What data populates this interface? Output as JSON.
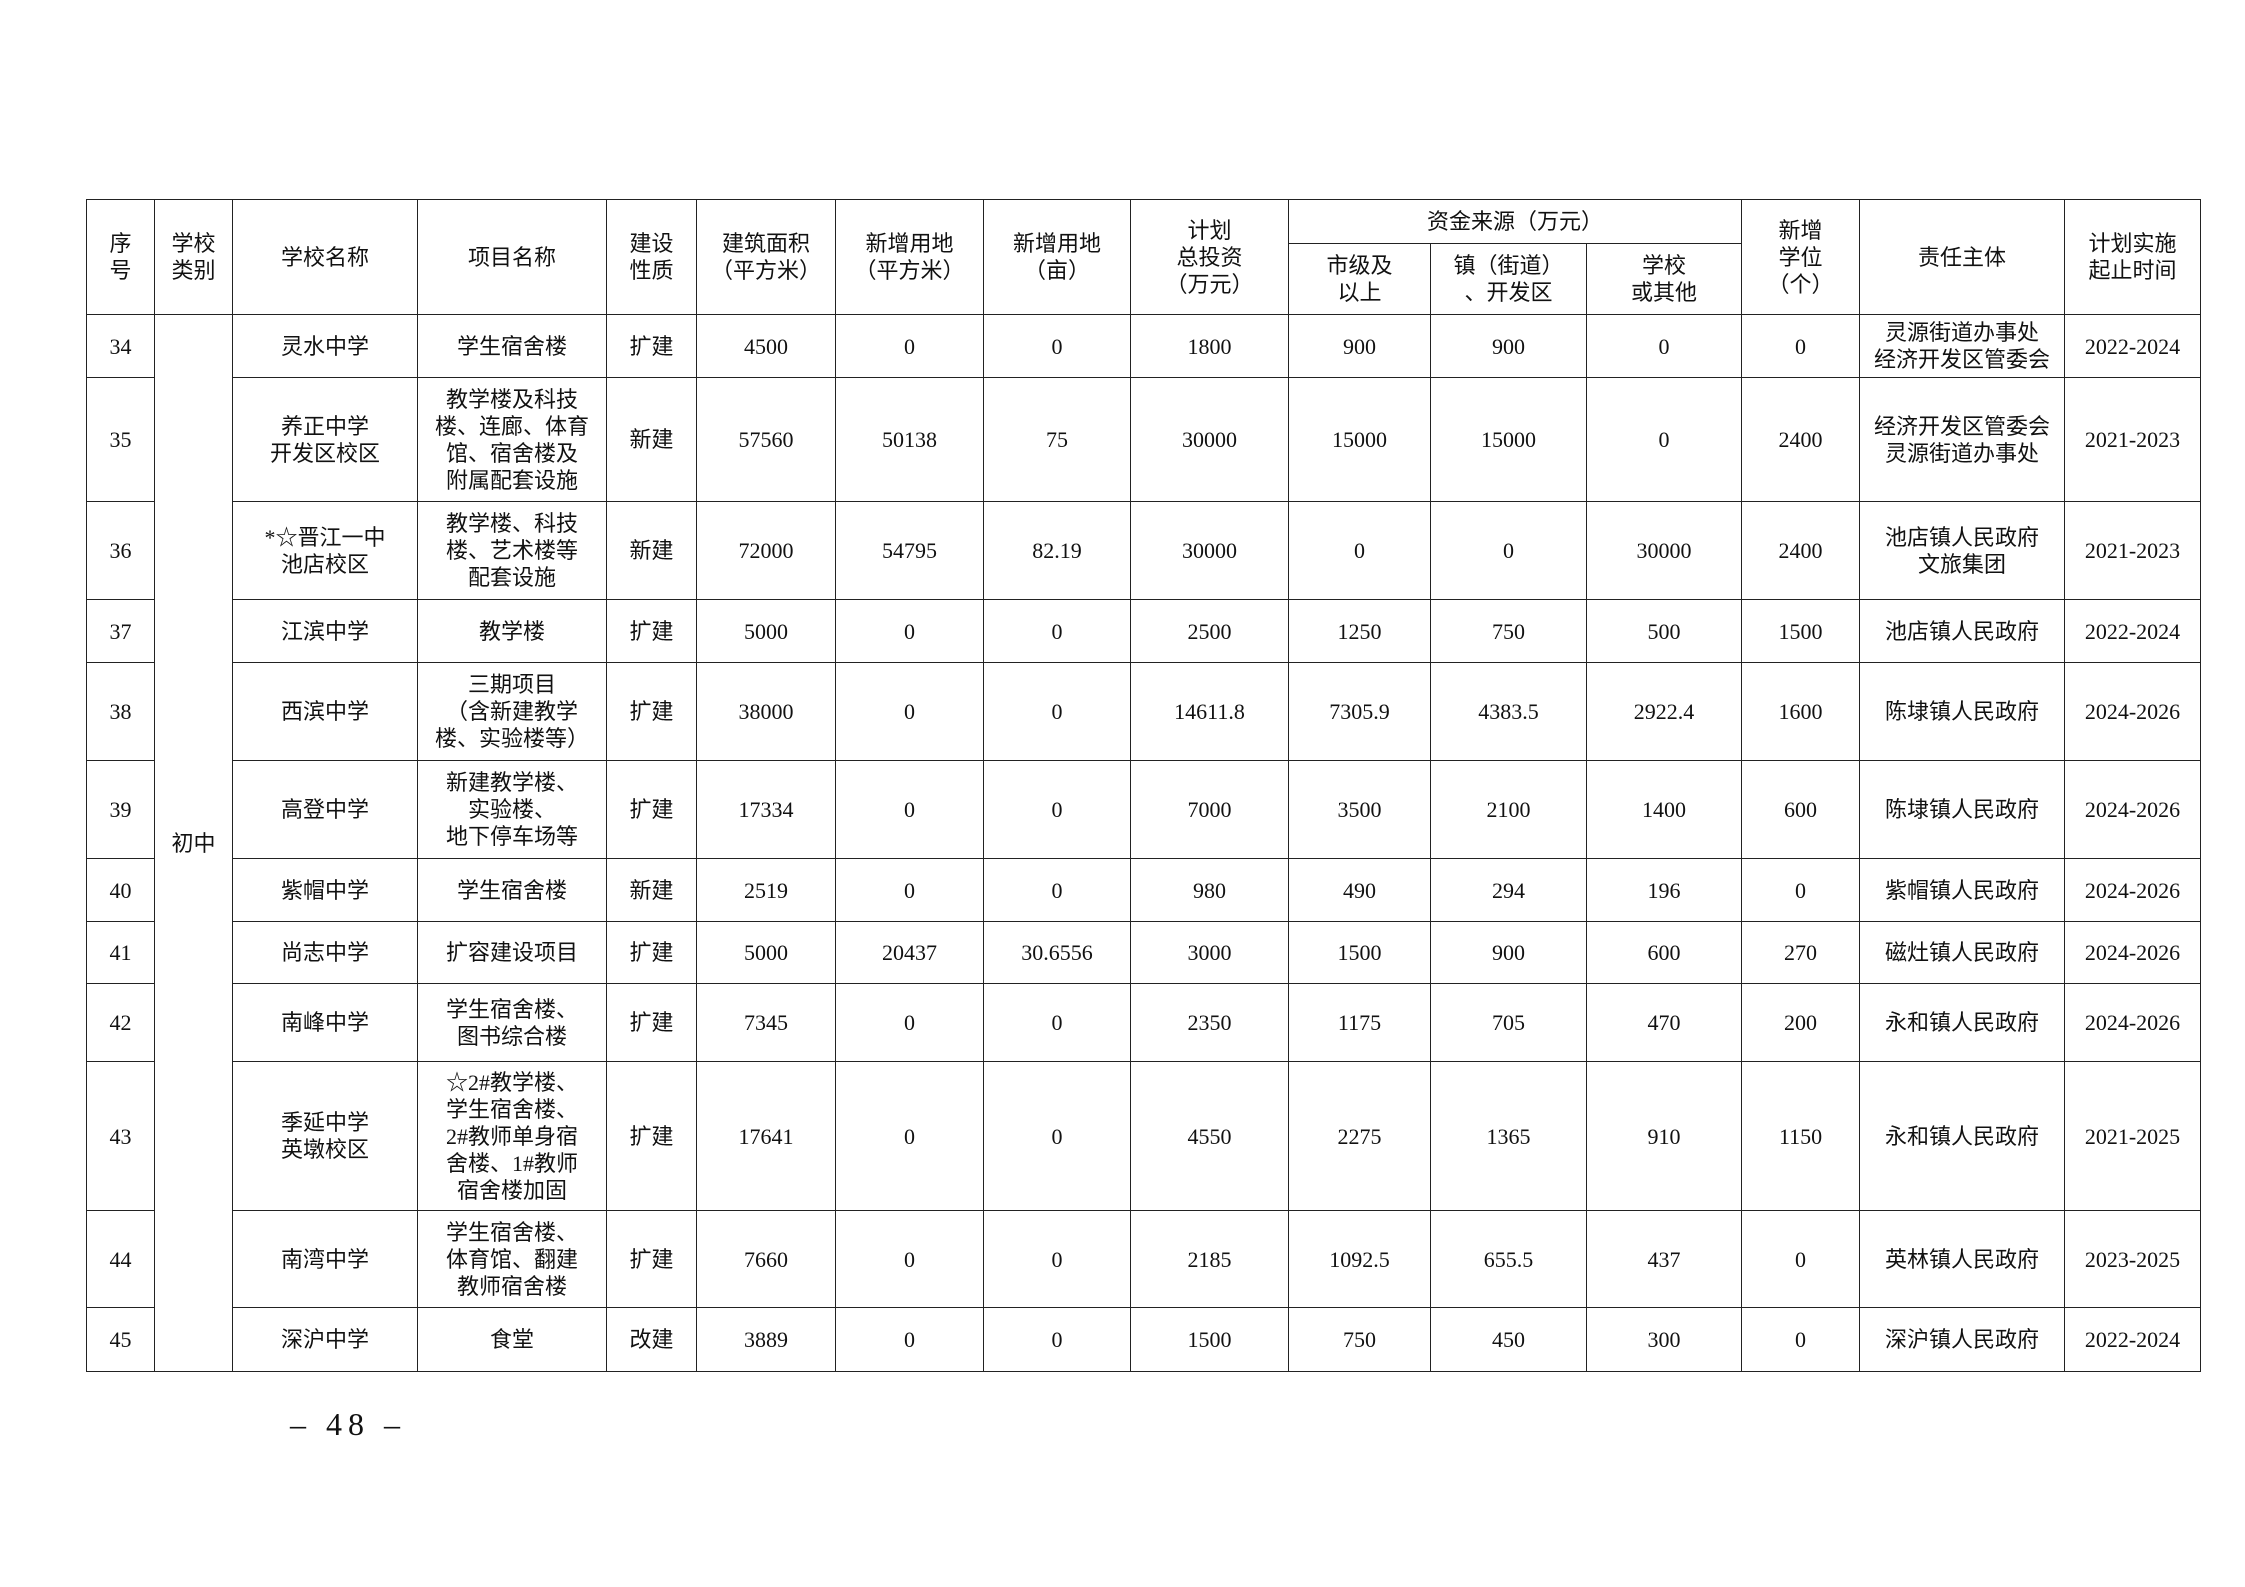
{
  "headers": {
    "no": "序\n号",
    "category": "学校\n类别",
    "school": "学校名称",
    "project": "项目名称",
    "nature": "建设\n性质",
    "area": "建筑面积\n（平方米）",
    "land_sqm": "新增用地\n（平方米）",
    "land_mu": "新增用地\n（亩）",
    "invest": "计划\n总投资\n（万元）",
    "funding": "资金来源（万元）",
    "fund_city": "市级及\n以上",
    "fund_town": "镇（街道）\n、开发区",
    "fund_school": "学校\n或其他",
    "seats": "新增\n学位\n（个）",
    "owner": "责任主体",
    "period": "计划实施\n起止时间"
  },
  "category": "初中",
  "rows": [
    {
      "no": "34",
      "school": "灵水中学",
      "project": "学生宿舍楼",
      "nature": "扩建",
      "area": "4500",
      "land_sqm": "0",
      "land_mu": "0",
      "invest": "1800",
      "city": "900",
      "town": "900",
      "school_fund": "0",
      "seats": "0",
      "owner": "灵源街道办事处\n经济开发区管委会",
      "period": "2022-2024"
    },
    {
      "no": "35",
      "school": "养正中学\n开发区校区",
      "project": "教学楼及科技\n楼、连廊、体育\n馆、宿舍楼及\n附属配套设施",
      "nature": "新建",
      "area": "57560",
      "land_sqm": "50138",
      "land_mu": "75",
      "invest": "30000",
      "city": "15000",
      "town": "15000",
      "school_fund": "0",
      "seats": "2400",
      "owner": "经济开发区管委会\n灵源街道办事处",
      "period": "2021-2023"
    },
    {
      "no": "36",
      "school": "*☆晋江一中\n池店校区",
      "project": "教学楼、科技\n楼、艺术楼等\n配套设施",
      "nature": "新建",
      "area": "72000",
      "land_sqm": "54795",
      "land_mu": "82.19",
      "invest": "30000",
      "city": "0",
      "town": "0",
      "school_fund": "30000",
      "seats": "2400",
      "owner": "池店镇人民政府\n文旅集团",
      "period": "2021-2023"
    },
    {
      "no": "37",
      "school": "江滨中学",
      "project": "教学楼",
      "nature": "扩建",
      "area": "5000",
      "land_sqm": "0",
      "land_mu": "0",
      "invest": "2500",
      "city": "1250",
      "town": "750",
      "school_fund": "500",
      "seats": "1500",
      "owner": "池店镇人民政府",
      "period": "2022-2024"
    },
    {
      "no": "38",
      "school": "西滨中学",
      "project": "三期项目\n（含新建教学\n楼、实验楼等）",
      "nature": "扩建",
      "area": "38000",
      "land_sqm": "0",
      "land_mu": "0",
      "invest": "14611.8",
      "city": "7305.9",
      "town": "4383.5",
      "school_fund": "2922.4",
      "seats": "1600",
      "owner": "陈埭镇人民政府",
      "period": "2024-2026"
    },
    {
      "no": "39",
      "school": "高登中学",
      "project": "新建教学楼、\n实验楼、\n地下停车场等",
      "nature": "扩建",
      "area": "17334",
      "land_sqm": "0",
      "land_mu": "0",
      "invest": "7000",
      "city": "3500",
      "town": "2100",
      "school_fund": "1400",
      "seats": "600",
      "owner": "陈埭镇人民政府",
      "period": "2024-2026"
    },
    {
      "no": "40",
      "school": "紫帽中学",
      "project": "学生宿舍楼",
      "nature": "新建",
      "area": "2519",
      "land_sqm": "0",
      "land_mu": "0",
      "invest": "980",
      "city": "490",
      "town": "294",
      "school_fund": "196",
      "seats": "0",
      "owner": "紫帽镇人民政府",
      "period": "2024-2026"
    },
    {
      "no": "41",
      "school": "尚志中学",
      "project": "扩容建设项目",
      "nature": "扩建",
      "area": "5000",
      "land_sqm": "20437",
      "land_mu": "30.6556",
      "invest": "3000",
      "city": "1500",
      "town": "900",
      "school_fund": "600",
      "seats": "270",
      "owner": "磁灶镇人民政府",
      "period": "2024-2026"
    },
    {
      "no": "42",
      "school": "南峰中学",
      "project": "学生宿舍楼、\n图书综合楼",
      "nature": "扩建",
      "area": "7345",
      "land_sqm": "0",
      "land_mu": "0",
      "invest": "2350",
      "city": "1175",
      "town": "705",
      "school_fund": "470",
      "seats": "200",
      "owner": "永和镇人民政府",
      "period": "2024-2026"
    },
    {
      "no": "43",
      "school": "季延中学\n英墩校区",
      "project": "☆2#教学楼、\n学生宿舍楼、\n2#教师单身宿\n舍楼、1#教师\n宿舍楼加固",
      "nature": "扩建",
      "area": "17641",
      "land_sqm": "0",
      "land_mu": "0",
      "invest": "4550",
      "city": "2275",
      "town": "1365",
      "school_fund": "910",
      "seats": "1150",
      "owner": "永和镇人民政府",
      "period": "2021-2025"
    },
    {
      "no": "44",
      "school": "南湾中学",
      "project": "学生宿舍楼、\n体育馆、翻建\n教师宿舍楼",
      "nature": "扩建",
      "area": "7660",
      "land_sqm": "0",
      "land_mu": "0",
      "invest": "2185",
      "city": "1092.5",
      "town": "655.5",
      "school_fund": "437",
      "seats": "0",
      "owner": "英林镇人民政府",
      "period": "2023-2025"
    },
    {
      "no": "45",
      "school": "深沪中学",
      "project": "食堂",
      "nature": "改建",
      "area": "3889",
      "land_sqm": "0",
      "land_mu": "0",
      "invest": "1500",
      "city": "750",
      "town": "450",
      "school_fund": "300",
      "seats": "0",
      "owner": "深沪镇人民政府",
      "period": "2022-2024"
    }
  ],
  "page_number": "– 48 –"
}
